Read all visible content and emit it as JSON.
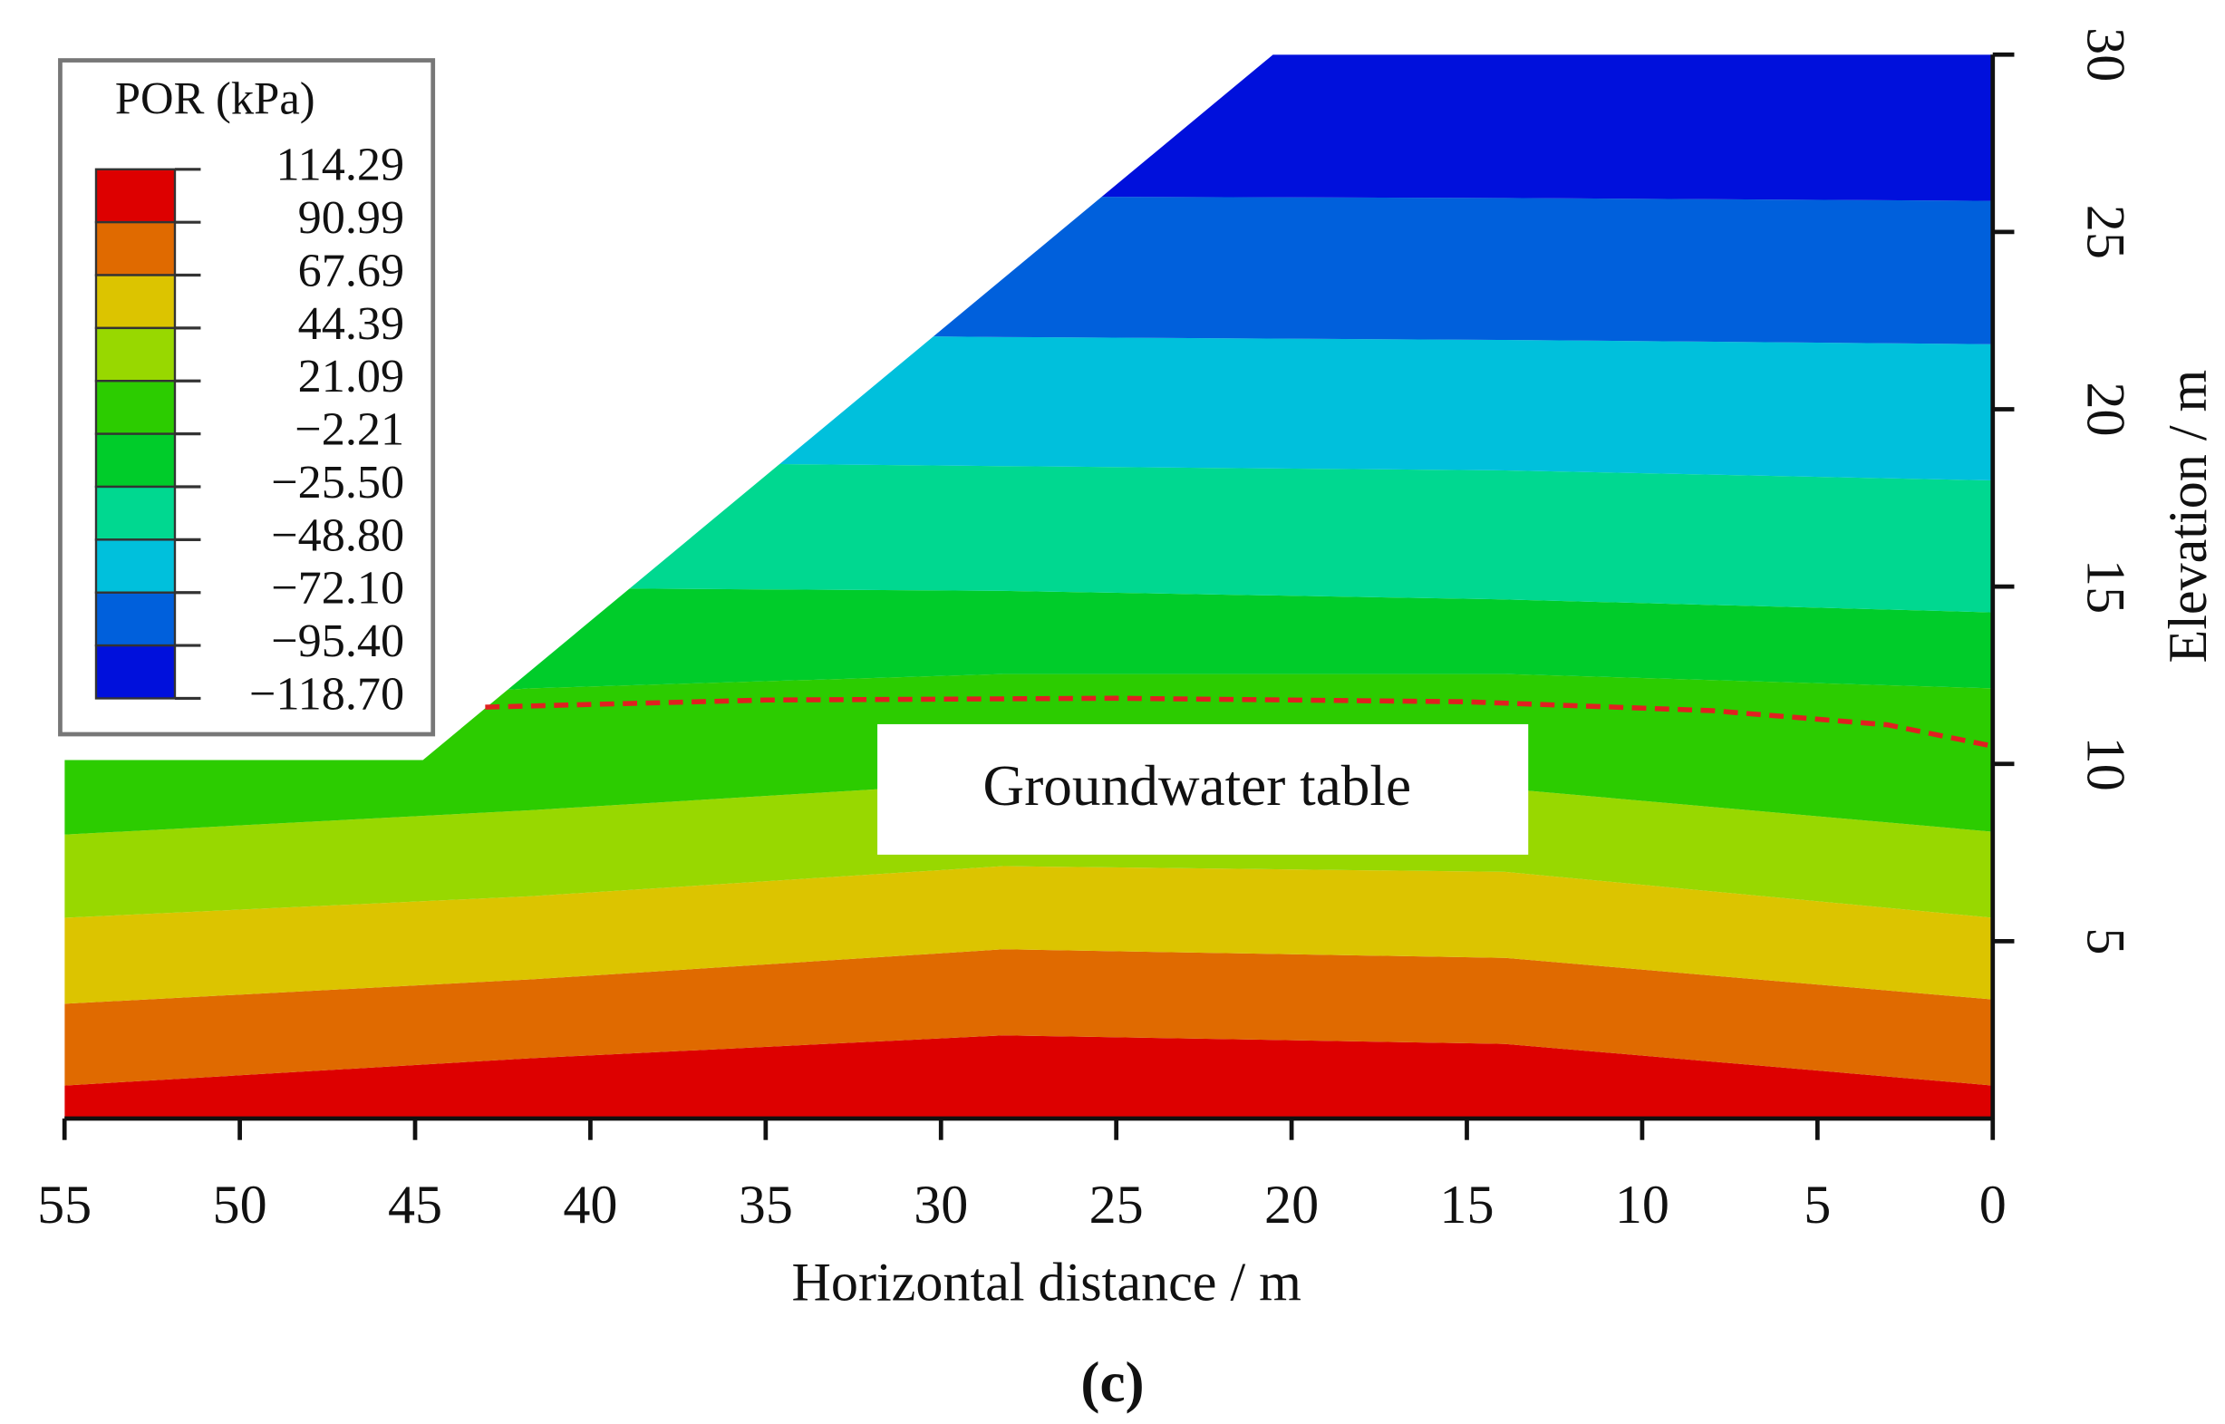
{
  "chart_data": {
    "type": "contour",
    "x_label": "Horizontal distance / m",
    "y_label": "Elevation / m",
    "xlim": [
      55,
      0
    ],
    "xticks": [
      55,
      50,
      45,
      40,
      35,
      30,
      25,
      20,
      15,
      10,
      5,
      0
    ],
    "ylim": [
      0,
      30
    ],
    "yticks": [
      5,
      10,
      15,
      20,
      25,
      30
    ],
    "legend": {
      "title": "POR (kPa)",
      "levels": [
        114.29,
        90.99,
        67.69,
        44.39,
        21.09,
        {
          "value": -2.21,
          "label": "−2.21"
        },
        {
          "value": -25.5,
          "label": "−25.50"
        },
        {
          "value": -48.8,
          "label": "−48.80"
        },
        {
          "value": -72.1,
          "label": "−72.10"
        },
        {
          "value": -95.4,
          "label": "−95.40"
        },
        {
          "value": -118.7,
          "label": "−118.70"
        }
      ],
      "colors": [
        "#dd0000",
        "#e06a00",
        "#dcc400",
        "#98d800",
        "#2ccc00",
        "#00cc2a",
        "#00d890",
        "#00c0dc",
        "#0060dc",
        "#0010dc"
      ]
    },
    "series": [
      {
        "name": "Groundwater table",
        "color": "#e02020",
        "x": [
          43,
          35,
          25,
          15,
          8,
          3,
          0
        ],
        "values": [
          11.6,
          11.8,
          11.85,
          11.75,
          11.5,
          11.1,
          10.5
        ]
      }
    ],
    "caption": "(c)"
  }
}
